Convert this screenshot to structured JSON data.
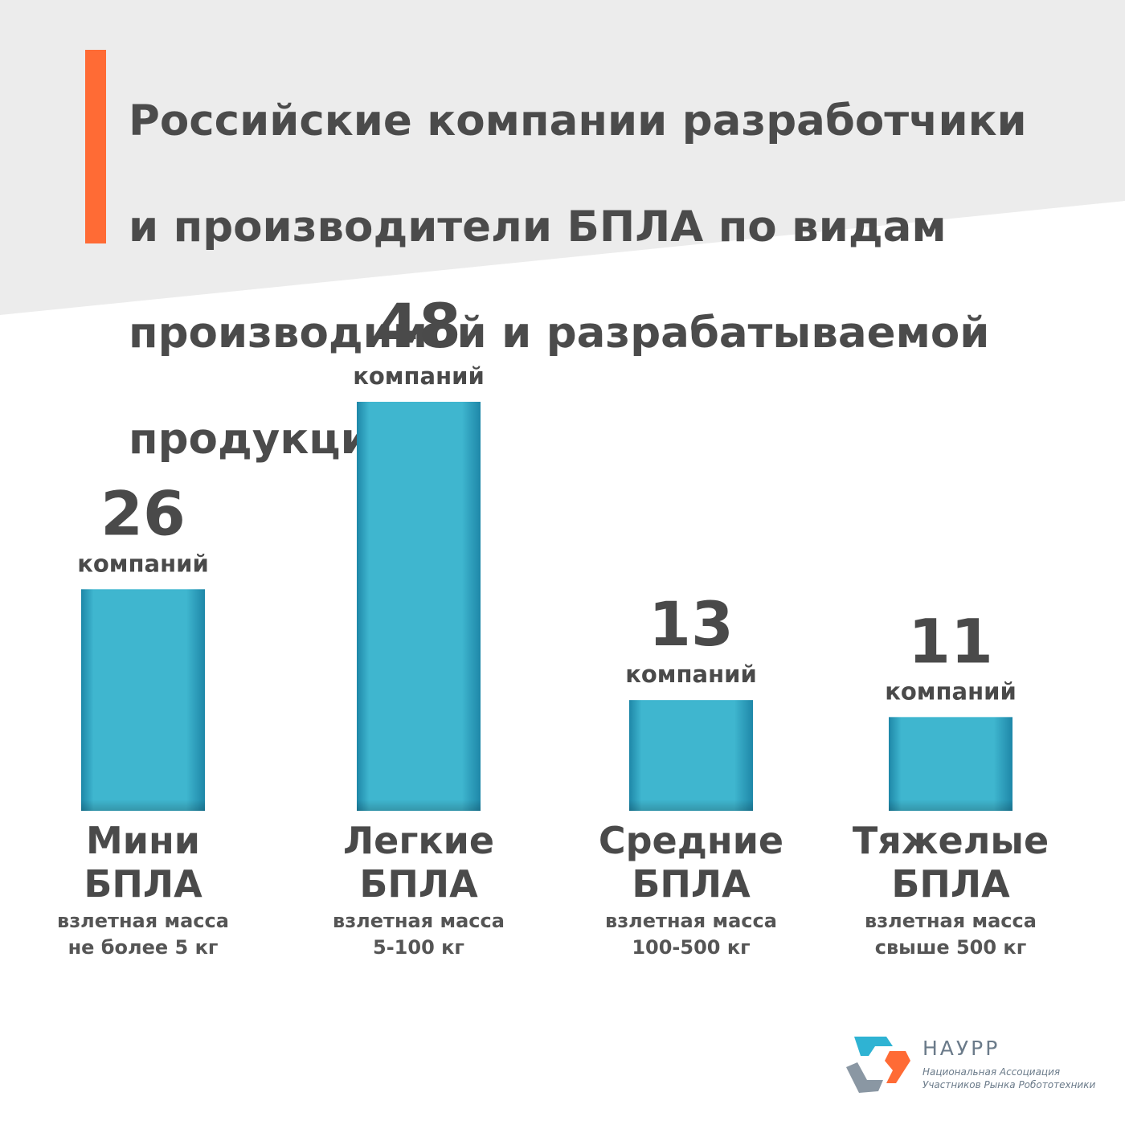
{
  "colors": {
    "accent": "#ff6b35",
    "bar": "#3fb6cf",
    "bar_dark": "#1e87a8",
    "header_bg": "#ececec",
    "text": "#4a4a4a"
  },
  "header": {
    "title_lines": [
      "Российские компании разработчики",
      "и производители БПЛА по  видам",
      "производимой и разрабатываемой",
      "продукции:"
    ]
  },
  "chart_data": {
    "type": "bar",
    "categories": [
      "Мини БПЛА",
      "Легкие БПЛА",
      "Средние БПЛА",
      "Тяжелые БПЛА"
    ],
    "values": [
      26,
      48,
      13,
      11
    ],
    "value_unit_label": "компаний",
    "bars": [
      {
        "name_lines": [
          "Мини",
          "БПЛА"
        ],
        "desc_lines": [
          "взлетная масса",
          "не более 5 кг"
        ],
        "value": 26,
        "unit": "компаний"
      },
      {
        "name_lines": [
          "Легкие",
          "БПЛА"
        ],
        "desc_lines": [
          "взлетная масса",
          "5-100 кг"
        ],
        "value": 48,
        "unit": "компаний"
      },
      {
        "name_lines": [
          "Средние",
          "БПЛА"
        ],
        "desc_lines": [
          "взлетная масса",
          "100-500 кг"
        ],
        "value": 13,
        "unit": "компаний"
      },
      {
        "name_lines": [
          "Тяжелые",
          "БПЛА"
        ],
        "desc_lines": [
          "взлетная масса",
          "свыше 500 кг"
        ],
        "value": 11,
        "unit": "компаний"
      }
    ],
    "title": "",
    "xlabel": "",
    "ylabel": "",
    "ylim": [
      0,
      48
    ],
    "grid": false,
    "legend": "none"
  },
  "logo": {
    "name": "НАУРР",
    "subtitle_lines": [
      "Национальная Ассоциация",
      "Участников Рынка Робототехники"
    ]
  }
}
